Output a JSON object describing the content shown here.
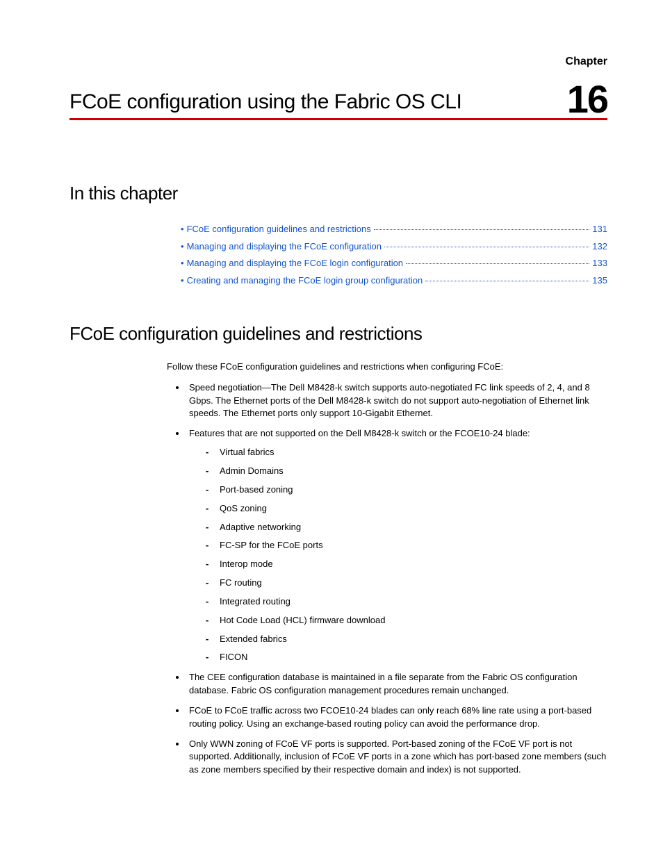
{
  "chapter": {
    "label": "Chapter",
    "number": "16",
    "title": "FCoE configuration using the Fabric OS CLI"
  },
  "section_in_this_chapter": "In this chapter",
  "toc": [
    {
      "label": "FCoE configuration guidelines and restrictions",
      "page": "131"
    },
    {
      "label": "Managing and displaying the FCoE configuration",
      "page": "132"
    },
    {
      "label": "Managing and displaying the FCoE login configuration",
      "page": "133"
    },
    {
      "label": "Creating and managing the FCoE login group configuration",
      "page": "135"
    }
  ],
  "section_guidelines": "FCoE configuration guidelines and restrictions",
  "intro_text": "Follow these FCoE configuration guidelines and restrictions when configuring FCoE:",
  "bullets": [
    "Speed negotiation—The Dell M8428-k switch supports auto-negotiated FC link speeds of 2, 4, and 8 Gbps. The Ethernet ports of the Dell M8428-k switch do not support auto-negotiation of Ethernet link speeds. The Ethernet ports only support 10-Gigabit Ethernet.",
    "Features that are not supported on the Dell M8428-k switch or the FCOE10-24 blade:"
  ],
  "unsupported": [
    "Virtual fabrics",
    "Admin Domains",
    "Port-based zoning",
    "QoS zoning",
    "Adaptive networking",
    "FC-SP for the FCoE ports",
    "Interop mode",
    "FC routing",
    "Integrated routing",
    "Hot Code Load (HCL) firmware download",
    "Extended fabrics",
    "FICON"
  ],
  "bullets_after": [
    "The CEE configuration database is maintained in a file separate from the Fabric OS configuration database. Fabric OS configuration management procedures remain unchanged.",
    "FCoE to FCoE traffic across two FCOE10-24 blades can only reach 68% line rate using a port-based routing policy. Using an exchange-based routing policy can avoid the performance drop.",
    "Only WWN zoning of FCoE VF ports is supported. Port-based zoning of the FCoE VF port is not supported. Additionally, inclusion of FCoE VF ports in a zone which has port-based zone members (such as zone members specified by their respective domain and index) is not supported."
  ],
  "colors": {
    "link": "#1155cc",
    "rule": "#cc0000",
    "text": "#000000",
    "background": "#ffffff"
  }
}
